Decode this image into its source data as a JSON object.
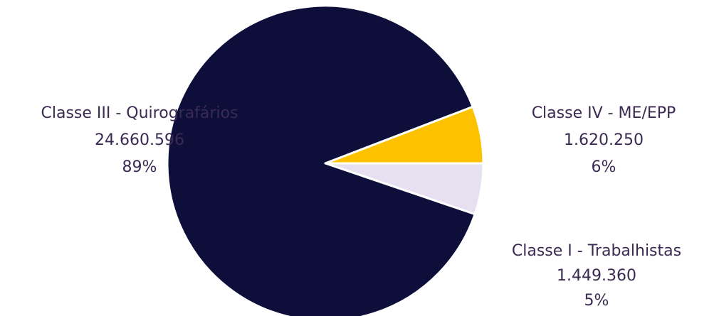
{
  "chart_data": {
    "type": "pie",
    "title": "",
    "slices": [
      {
        "name": "Classe III - Quirografários",
        "value": 24660596,
        "value_label": "24.660.596",
        "percent_label": "89%",
        "color": "#0d0f3a"
      },
      {
        "name": "Classe IV - ME/EPP",
        "value": 1620250,
        "value_label": "1.620.250",
        "percent_label": "6%",
        "color": "#fcc200"
      },
      {
        "name": "Classe I - Trabalhistas",
        "value": 1449360,
        "value_label": "1.449.360",
        "percent_label": "5%",
        "color": "#e6e0f0"
      }
    ],
    "label_color": "#3b2a52",
    "legend": "none"
  }
}
